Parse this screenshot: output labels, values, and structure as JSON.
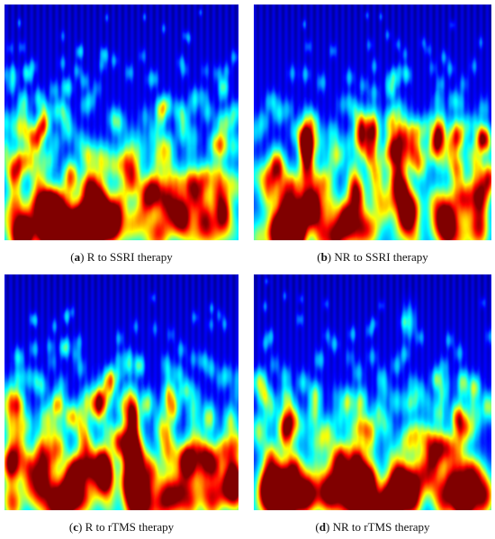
{
  "figure": {
    "panels": [
      {
        "tag": "a",
        "caption": "R to SSRI therapy"
      },
      {
        "tag": "b",
        "caption": "NR to SSRI therapy"
      },
      {
        "tag": "c",
        "caption": "R to rTMS therapy"
      },
      {
        "tag": "d",
        "caption": "NR to rTMS therapy"
      }
    ],
    "colormap": [
      "#00008f",
      "#0000ff",
      "#00a0ff",
      "#00ffff",
      "#80ff80",
      "#ffff00",
      "#ff8000",
      "#ff0000",
      "#800000"
    ]
  }
}
